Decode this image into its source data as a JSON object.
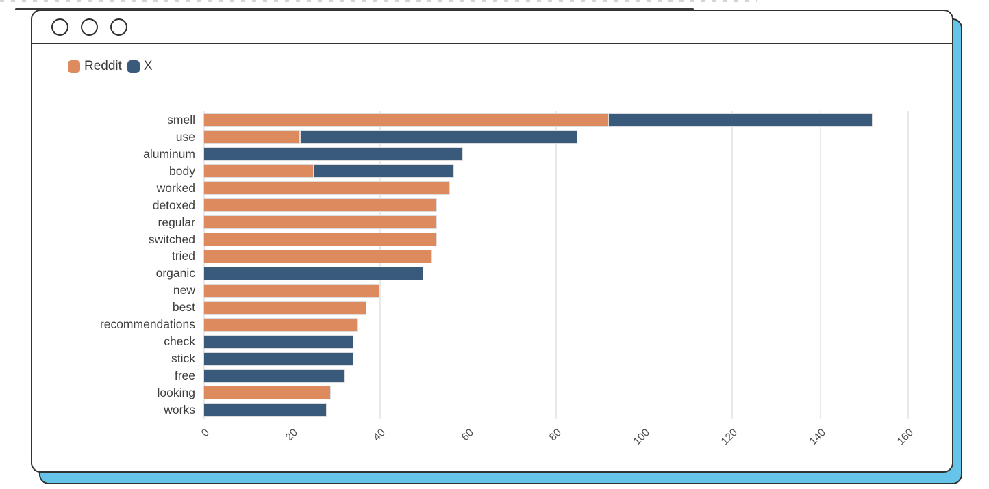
{
  "window": {
    "type": "browser-mockup",
    "controls_count": 3
  },
  "colors": {
    "reddit_orange": "#DD8A5E",
    "x_navy": "#3A5A7C",
    "backdrop_cyan": "#66C4E9",
    "window_border": "#323232",
    "gridline": "#e9e9e9"
  },
  "chart_data": {
    "type": "bar",
    "orientation": "horizontal",
    "stacked": true,
    "title": "",
    "xlabel": "",
    "ylabel": "",
    "grid": "vertical",
    "legend_position": "top-left",
    "xlim": [
      0,
      160
    ],
    "xticks": [
      0,
      20,
      40,
      60,
      80,
      100,
      120,
      140,
      160
    ],
    "categories": [
      "smell",
      "use",
      "aluminum",
      "body",
      "worked",
      "detoxed",
      "regular",
      "switched",
      "tried",
      "organic",
      "new",
      "best",
      "recommendations",
      "check",
      "stick",
      "free",
      "looking",
      "works"
    ],
    "series": [
      {
        "name": "Reddit",
        "color": "#DD8A5E",
        "values": [
          92,
          22,
          0,
          25,
          56,
          53,
          53,
          53,
          52,
          0,
          40,
          37,
          35,
          0,
          0,
          0,
          29,
          0
        ]
      },
      {
        "name": "X",
        "color": "#3A5A7C",
        "values": [
          60,
          63,
          59,
          32,
          0,
          0,
          0,
          0,
          0,
          50,
          0,
          0,
          0,
          34,
          34,
          32,
          0,
          28
        ]
      }
    ]
  }
}
